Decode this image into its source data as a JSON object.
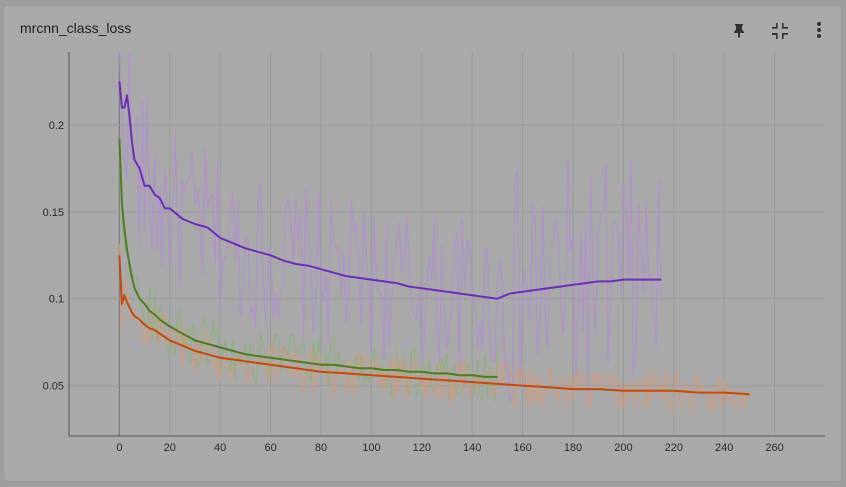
{
  "card": {
    "title": "mrcnn_class_loss"
  },
  "toolbar": {
    "buttons": [
      {
        "icon": "pin-icon"
      },
      {
        "icon": "fullscreen-exit-icon"
      },
      {
        "icon": "more-vert-icon"
      }
    ]
  },
  "chart_data": {
    "type": "line",
    "title": "mrcnn_class_loss",
    "xlabel": "",
    "ylabel": "",
    "xlim": [
      -20,
      280
    ],
    "ylim": [
      0.021,
      0.242
    ],
    "x_ticks": [
      0,
      20,
      40,
      60,
      80,
      100,
      120,
      140,
      160,
      180,
      200,
      220,
      240,
      260
    ],
    "x_tick_labels": [
      "0",
      "20",
      "40",
      "60",
      "80",
      "100",
      "120",
      "140",
      "160",
      "180",
      "200",
      "220",
      "240",
      "260"
    ],
    "y_ticks": [
      0.05,
      0.1,
      0.15,
      0.2
    ],
    "y_tick_labels": [
      "0.05",
      "0.1",
      "0.15",
      "0.2"
    ],
    "grid": true,
    "legend": "none",
    "series": [
      {
        "color": "#6a2fb3",
        "raw_color": "#b08fd2",
        "smoothed_x": [
          0,
          1,
          2,
          3,
          4,
          5,
          6,
          8,
          10,
          12,
          14,
          16,
          18,
          20,
          25,
          30,
          35,
          40,
          45,
          50,
          55,
          60,
          65,
          70,
          75,
          80,
          85,
          90,
          95,
          100,
          105,
          110,
          115,
          120,
          125,
          130,
          135,
          140,
          145,
          150,
          155,
          160,
          165,
          170,
          175,
          180,
          185,
          190,
          195,
          200,
          205,
          210,
          215
        ],
        "smoothed_y": [
          0.225,
          0.21,
          0.21,
          0.217,
          0.205,
          0.19,
          0.18,
          0.175,
          0.165,
          0.165,
          0.16,
          0.158,
          0.152,
          0.152,
          0.146,
          0.143,
          0.141,
          0.135,
          0.132,
          0.129,
          0.127,
          0.125,
          0.122,
          0.12,
          0.119,
          0.117,
          0.115,
          0.113,
          0.112,
          0.111,
          0.11,
          0.109,
          0.107,
          0.106,
          0.105,
          0.104,
          0.103,
          0.102,
          0.101,
          0.1,
          0.103,
          0.104,
          0.105,
          0.106,
          0.107,
          0.108,
          0.109,
          0.11,
          0.11,
          0.111,
          0.111,
          0.111,
          0.111
        ]
      },
      {
        "color": "#4e7c22",
        "raw_color": "#8fb07e",
        "smoothed_x": [
          0,
          1,
          2,
          3,
          4,
          5,
          6,
          8,
          10,
          12,
          14,
          16,
          18,
          20,
          25,
          30,
          35,
          40,
          45,
          50,
          55,
          60,
          65,
          70,
          75,
          80,
          85,
          90,
          95,
          100,
          105,
          110,
          115,
          120,
          125,
          130,
          135,
          140,
          145,
          150
        ],
        "smoothed_y": [
          0.192,
          0.155,
          0.14,
          0.128,
          0.12,
          0.112,
          0.106,
          0.1,
          0.097,
          0.093,
          0.091,
          0.088,
          0.086,
          0.084,
          0.08,
          0.076,
          0.074,
          0.072,
          0.07,
          0.068,
          0.067,
          0.066,
          0.065,
          0.064,
          0.063,
          0.062,
          0.062,
          0.061,
          0.06,
          0.06,
          0.059,
          0.059,
          0.058,
          0.058,
          0.057,
          0.057,
          0.056,
          0.056,
          0.055,
          0.055
        ]
      },
      {
        "color": "#c04a10",
        "raw_color": "#d59a78",
        "smoothed_x": [
          0,
          1,
          2,
          3,
          4,
          5,
          6,
          8,
          10,
          12,
          14,
          16,
          18,
          20,
          25,
          30,
          35,
          40,
          45,
          50,
          55,
          60,
          70,
          80,
          90,
          100,
          110,
          120,
          130,
          140,
          150,
          160,
          170,
          180,
          190,
          200,
          210,
          220,
          230,
          240,
          250
        ],
        "smoothed_y": [
          0.125,
          0.097,
          0.102,
          0.098,
          0.095,
          0.092,
          0.09,
          0.088,
          0.085,
          0.083,
          0.082,
          0.08,
          0.078,
          0.076,
          0.073,
          0.07,
          0.068,
          0.066,
          0.065,
          0.064,
          0.063,
          0.062,
          0.06,
          0.058,
          0.057,
          0.056,
          0.055,
          0.054,
          0.053,
          0.052,
          0.051,
          0.05,
          0.049,
          0.048,
          0.048,
          0.047,
          0.047,
          0.047,
          0.046,
          0.046,
          0.045
        ]
      }
    ]
  }
}
